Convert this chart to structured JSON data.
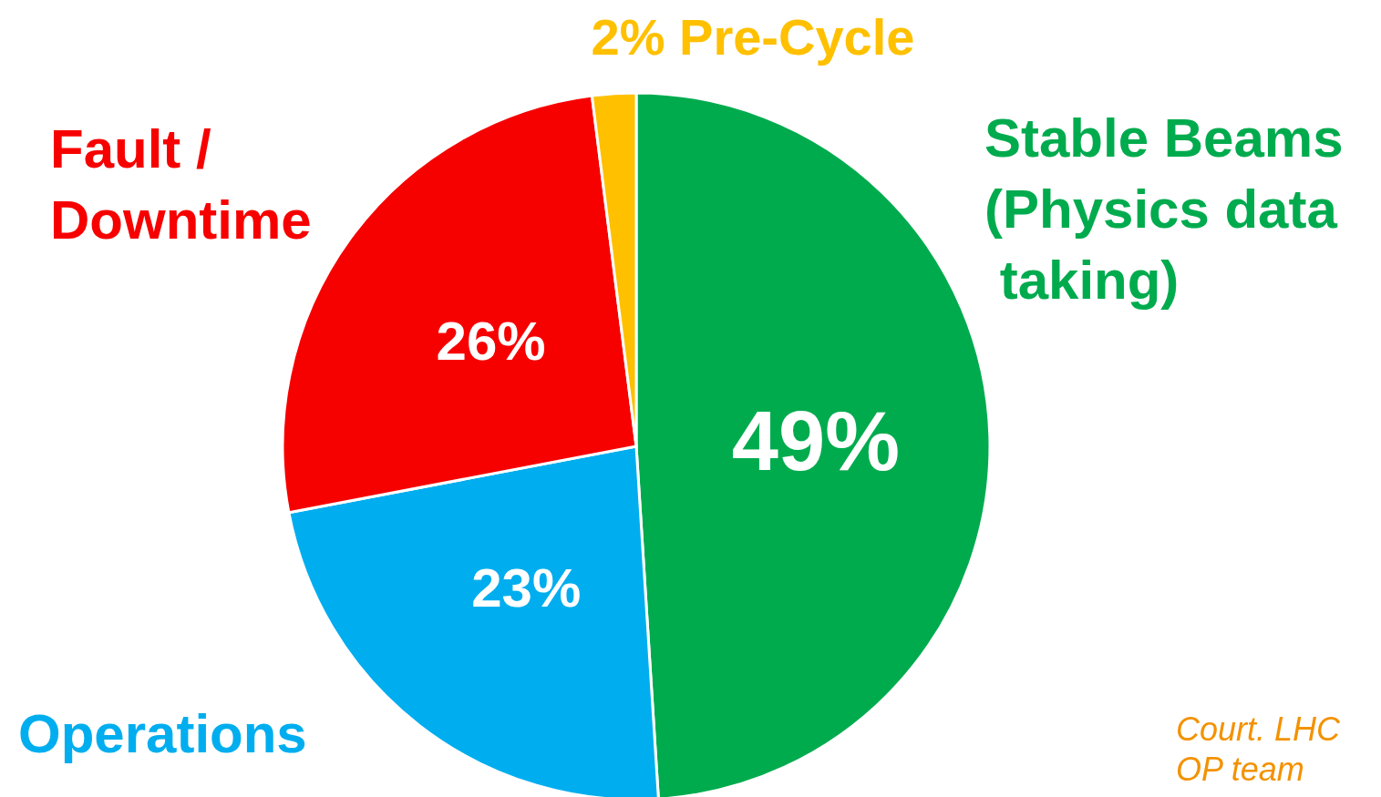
{
  "chart_data": {
    "type": "pie",
    "categories": [
      "Stable Beams (Physics data taking)",
      "Operations",
      "Fault / Downtime",
      "Pre-Cycle"
    ],
    "values": [
      49,
      23,
      26,
      2
    ],
    "colors": [
      "#00ab4e",
      "#00aeef",
      "#f70000",
      "#ffc000"
    ],
    "value_labels": [
      "49%",
      "23%",
      "26%",
      "2%"
    ],
    "annotations": [
      "Court. LHC OP team"
    ]
  }
}
